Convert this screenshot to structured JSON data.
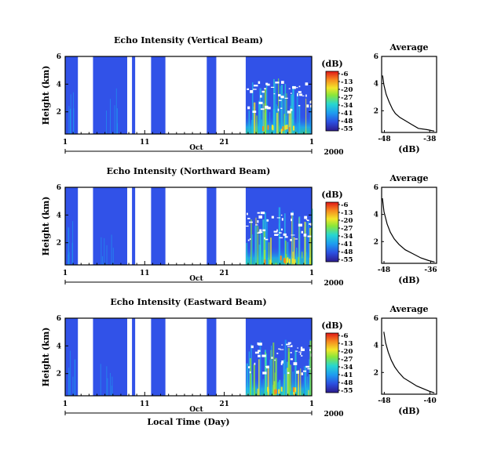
{
  "chart_data": [
    {
      "type": "heatmap",
      "title": "Echo Intensity (Vertical Beam)",
      "xlabel": "",
      "ylabel": "Height (km)",
      "x_tick_labels": [
        "1",
        "11",
        "21",
        "1"
      ],
      "month_label": "Oct",
      "year_label": "2000",
      "y_ticks": [
        2,
        4,
        6
      ],
      "xlim_days": [
        1,
        32
      ],
      "ylim_km": [
        0.4,
        6
      ],
      "colorbar": {
        "unit": "(dB)",
        "ticks": [
          -6,
          -13,
          -20,
          -27,
          -34,
          -41,
          -48,
          -55
        ]
      },
      "data_segments_days": [
        [
          1,
          2.6
        ],
        [
          4.5,
          8.8
        ],
        [
          9.4,
          9.8
        ],
        [
          11.8,
          13.6
        ],
        [
          18.8,
          20
        ],
        [
          23.7,
          32
        ]
      ],
      "average_profile": {
        "title": "Average",
        "xlabel": "(dB)",
        "x_tick_labels": [
          "-48",
          "-38"
        ],
        "xlim": [
          -49,
          -37
        ],
        "y_ticks": [
          2,
          4,
          6
        ],
        "points": [
          [
            -48.8,
            4.6
          ],
          [
            -48.5,
            3.9
          ],
          [
            -48.0,
            3.2
          ],
          [
            -47.3,
            2.6
          ],
          [
            -46.6,
            2.1
          ],
          [
            -46.0,
            1.8
          ],
          [
            -45.0,
            1.5
          ],
          [
            -44.0,
            1.3
          ],
          [
            -42.5,
            1.0
          ],
          [
            -41.0,
            0.7
          ],
          [
            -39.0,
            0.6
          ],
          [
            -37.5,
            0.5
          ]
        ]
      }
    },
    {
      "type": "heatmap",
      "title": "Echo Intensity (Northward Beam)",
      "xlabel": "",
      "ylabel": "Height (km)",
      "x_tick_labels": [
        "1",
        "11",
        "21",
        "1"
      ],
      "month_label": "Oct",
      "year_label": "2000",
      "y_ticks": [
        2,
        4,
        6
      ],
      "xlim_days": [
        1,
        32
      ],
      "ylim_km": [
        0.4,
        6
      ],
      "colorbar": {
        "unit": "(dB)",
        "ticks": [
          -6,
          -13,
          -20,
          -27,
          -34,
          -41,
          -48,
          -55
        ]
      },
      "data_segments_days": [
        [
          1,
          2.6
        ],
        [
          4.5,
          8.8
        ],
        [
          9.4,
          9.8
        ],
        [
          11.8,
          13.6
        ],
        [
          18.8,
          20
        ],
        [
          23.7,
          32
        ]
      ],
      "average_profile": {
        "title": "Average",
        "xlabel": "(dB)",
        "x_tick_labels": [
          "-48",
          "-36"
        ],
        "xlim": [
          -49,
          -35
        ],
        "y_ticks": [
          2,
          4,
          6
        ],
        "points": [
          [
            -48.8,
            5.2
          ],
          [
            -48.4,
            4.2
          ],
          [
            -47.6,
            3.3
          ],
          [
            -46.8,
            2.7
          ],
          [
            -45.8,
            2.2
          ],
          [
            -44.6,
            1.8
          ],
          [
            -43.0,
            1.4
          ],
          [
            -41.0,
            1.1
          ],
          [
            -39.0,
            0.8
          ],
          [
            -37.0,
            0.6
          ],
          [
            -35.5,
            0.5
          ]
        ]
      }
    },
    {
      "type": "heatmap",
      "title": "Echo Intensity (Eastward Beam)",
      "xlabel": "Local Time (Day)",
      "ylabel": "Height (km)",
      "x_tick_labels": [
        "1",
        "11",
        "21",
        "1"
      ],
      "month_label": "Oct",
      "year_label": "2000",
      "y_ticks": [
        2,
        4,
        6
      ],
      "xlim_days": [
        1,
        32
      ],
      "ylim_km": [
        0.4,
        6
      ],
      "colorbar": {
        "unit": "(dB)",
        "ticks": [
          -6,
          -13,
          -20,
          -27,
          -34,
          -41,
          -48,
          -55
        ]
      },
      "data_segments_days": [
        [
          1,
          2.6
        ],
        [
          4.5,
          8.8
        ],
        [
          9.4,
          9.8
        ],
        [
          11.8,
          13.6
        ],
        [
          18.8,
          20
        ],
        [
          23.7,
          32
        ]
      ],
      "average_profile": {
        "title": "Average",
        "xlabel": "(dB)",
        "x_tick_labels": [
          "-48",
          "-40"
        ],
        "xlim": [
          -49.5,
          -37
        ],
        "y_ticks": [
          2,
          4,
          6
        ],
        "points": [
          [
            -49.0,
            5.0
          ],
          [
            -48.6,
            4.2
          ],
          [
            -48.0,
            3.5
          ],
          [
            -47.3,
            2.9
          ],
          [
            -46.5,
            2.4
          ],
          [
            -45.6,
            2.0
          ],
          [
            -44.5,
            1.6
          ],
          [
            -43.0,
            1.3
          ],
          [
            -41.5,
            1.0
          ],
          [
            -40.0,
            0.8
          ],
          [
            -38.5,
            0.6
          ],
          [
            -37.5,
            0.5
          ]
        ]
      }
    }
  ]
}
